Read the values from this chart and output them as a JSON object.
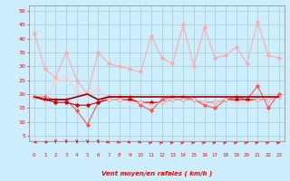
{
  "xlabel": "Vent moyen/en rafales ( km/h )",
  "bg_color": "#cceeff",
  "grid_color": "#aacccc",
  "x": [
    0,
    1,
    2,
    3,
    4,
    5,
    6,
    7,
    8,
    9,
    10,
    11,
    12,
    13,
    14,
    15,
    16,
    17,
    18,
    19,
    20,
    21,
    22,
    23
  ],
  "series": [
    {
      "data": [
        42,
        29,
        26,
        35,
        25,
        20,
        35,
        31,
        30,
        29,
        28,
        41,
        33,
        31,
        45,
        30,
        44,
        33,
        34,
        37,
        31,
        46,
        34,
        33
      ],
      "color": "#ffaaaa",
      "lw": 0.8,
      "marker": "D",
      "ms": 1.8
    },
    {
      "data": [
        19,
        19,
        18,
        18,
        14,
        9,
        17,
        19,
        19,
        19,
        16,
        14,
        18,
        19,
        19,
        18,
        16,
        15,
        18,
        19,
        18,
        23,
        15,
        20
      ],
      "color": "#ff5555",
      "lw": 0.8,
      "marker": "D",
      "ms": 1.8
    },
    {
      "data": [
        19,
        18,
        18,
        18,
        19,
        20,
        18,
        19,
        19,
        19,
        19,
        19,
        19,
        19,
        19,
        19,
        19,
        19,
        19,
        19,
        19,
        19,
        19,
        19
      ],
      "color": "#990000",
      "lw": 1.2,
      "marker": null,
      "ms": 0
    },
    {
      "data": [
        19,
        18,
        17,
        17,
        16,
        16,
        17,
        18,
        18,
        18,
        17,
        17,
        17,
        18,
        18,
        18,
        17,
        17,
        18,
        18,
        18,
        18,
        18,
        19
      ],
      "color": "#cc0000",
      "lw": 0.8,
      "marker": "D",
      "ms": 1.8
    },
    {
      "data": [
        19,
        17,
        25,
        26,
        21,
        20,
        22,
        18,
        18,
        17,
        17,
        16,
        17,
        18,
        18,
        18,
        17,
        17,
        18,
        17,
        17,
        18,
        18,
        19
      ],
      "color": "#ffcccc",
      "lw": 0.8,
      "marker": "D",
      "ms": 1.8
    }
  ],
  "ylim": [
    3,
    52
  ],
  "yticks": [
    5,
    10,
    15,
    20,
    25,
    30,
    35,
    40,
    45,
    50
  ],
  "xlim": [
    -0.5,
    23.5
  ],
  "xticks": [
    0,
    1,
    2,
    3,
    4,
    5,
    6,
    7,
    8,
    9,
    10,
    11,
    12,
    13,
    14,
    15,
    16,
    17,
    18,
    19,
    20,
    21,
    22,
    23
  ],
  "arrow_angles": [
    225,
    225,
    270,
    270,
    270,
    270,
    270,
    315,
    315,
    315,
    315,
    45,
    45,
    45,
    45,
    45,
    45,
    45,
    45,
    45,
    45,
    45,
    45,
    45
  ]
}
